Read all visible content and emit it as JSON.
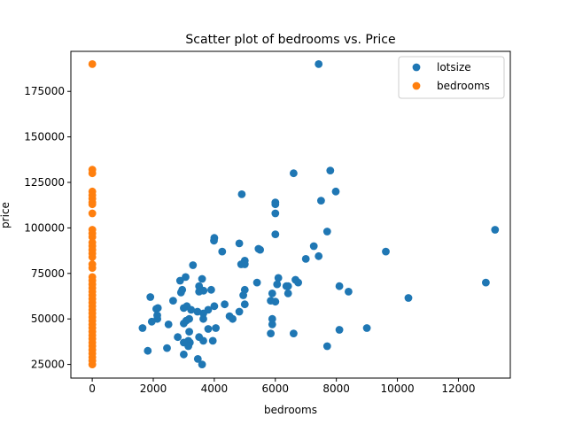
{
  "chart_data": {
    "type": "scatter",
    "title": "Scatter plot of bedrooms vs. Price",
    "xlabel": "bedrooms",
    "ylabel": "price",
    "xlim": [
      -700,
      13700
    ],
    "ylim": [
      17500,
      197000
    ],
    "xticks": [
      0,
      2000,
      4000,
      6000,
      8000,
      10000,
      12000
    ],
    "xtick_labels": [
      "0",
      "2000",
      "4000",
      "6000",
      "8000",
      "10000",
      "12000"
    ],
    "yticks": [
      25000,
      50000,
      75000,
      100000,
      125000,
      150000,
      175000
    ],
    "ytick_labels": [
      "25000",
      "50000",
      "75000",
      "100000",
      "125000",
      "150000",
      "175000"
    ],
    "grid": false,
    "legend_position": "top-right",
    "series": [
      {
        "name": "lotsize",
        "color": "#1f77b4",
        "points": [
          [
            7420,
            190000
          ],
          [
            13200,
            99000
          ],
          [
            12900,
            70000
          ],
          [
            10360,
            61500
          ],
          [
            9620,
            87000
          ],
          [
            9000,
            45000
          ],
          [
            8400,
            65000
          ],
          [
            8100,
            68000
          ],
          [
            8100,
            44000
          ],
          [
            7980,
            120000
          ],
          [
            7800,
            131500
          ],
          [
            7700,
            98000
          ],
          [
            7700,
            35000
          ],
          [
            7500,
            115000
          ],
          [
            7420,
            84500
          ],
          [
            7260,
            90000
          ],
          [
            7000,
            83000
          ],
          [
            6750,
            70000
          ],
          [
            6660,
            71500
          ],
          [
            6600,
            130000
          ],
          [
            6600,
            42000
          ],
          [
            6420,
            64000
          ],
          [
            6420,
            68000
          ],
          [
            6360,
            68000
          ],
          [
            6100,
            72500
          ],
          [
            6060,
            69000
          ],
          [
            6000,
            114000
          ],
          [
            6000,
            113000
          ],
          [
            6000,
            108000
          ],
          [
            6000,
            96500
          ],
          [
            6000,
            59500
          ],
          [
            5900,
            50000
          ],
          [
            5900,
            47000
          ],
          [
            5900,
            64000
          ],
          [
            5850,
            60000
          ],
          [
            5850,
            42000
          ],
          [
            5500,
            88000
          ],
          [
            5450,
            88500
          ],
          [
            5400,
            70000
          ],
          [
            5000,
            82000
          ],
          [
            5000,
            80000
          ],
          [
            5000,
            66000
          ],
          [
            5000,
            58000
          ],
          [
            4950,
            63000
          ],
          [
            4900,
            118500
          ],
          [
            4880,
            80000
          ],
          [
            4820,
            91500
          ],
          [
            4820,
            54000
          ],
          [
            4600,
            50000
          ],
          [
            4500,
            51500
          ],
          [
            4340,
            58000
          ],
          [
            4260,
            87000
          ],
          [
            4000,
            94500
          ],
          [
            3990,
            93000
          ],
          [
            4000,
            57000
          ],
          [
            4050,
            45000
          ],
          [
            3950,
            38000
          ],
          [
            3900,
            66000
          ],
          [
            3800,
            55000
          ],
          [
            3800,
            44500
          ],
          [
            3650,
            65500
          ],
          [
            3640,
            53000
          ],
          [
            3640,
            50000
          ],
          [
            3640,
            38000
          ],
          [
            3600,
            72000
          ],
          [
            3500,
            68000
          ],
          [
            3500,
            65000
          ],
          [
            3500,
            40000
          ],
          [
            3450,
            54000
          ],
          [
            3460,
            28000
          ],
          [
            3600,
            25000
          ],
          [
            3300,
            79500
          ],
          [
            3240,
            55000
          ],
          [
            3200,
            37000
          ],
          [
            3180,
            50000
          ],
          [
            3180,
            43000
          ],
          [
            3150,
            38000
          ],
          [
            3150,
            35000
          ],
          [
            3100,
            57000
          ],
          [
            3080,
            49000
          ],
          [
            3060,
            73000
          ],
          [
            3000,
            56000
          ],
          [
            3000,
            47500
          ],
          [
            3000,
            37000
          ],
          [
            3000,
            30500
          ],
          [
            2950,
            66000
          ],
          [
            2910,
            64500
          ],
          [
            2880,
            71000
          ],
          [
            2800,
            40000
          ],
          [
            2650,
            60000
          ],
          [
            2500,
            47000
          ],
          [
            2450,
            34000
          ],
          [
            2150,
            56000
          ],
          [
            2135,
            50000
          ],
          [
            2100,
            55500
          ],
          [
            2130,
            52000
          ],
          [
            1950,
            48500
          ],
          [
            1905,
            62000
          ],
          [
            1820,
            32500
          ],
          [
            1650,
            45000
          ]
        ]
      },
      {
        "name": "bedrooms",
        "color": "#ff7f0e",
        "points": [
          [
            3,
            190000
          ],
          [
            2,
            132000
          ],
          [
            2,
            130000
          ],
          [
            3,
            120000
          ],
          [
            3,
            118000
          ],
          [
            2,
            116000
          ],
          [
            3,
            114000
          ],
          [
            4,
            113000
          ],
          [
            2,
            108000
          ],
          [
            3,
            99000
          ],
          [
            3,
            97000
          ],
          [
            2,
            95000
          ],
          [
            3,
            92000
          ],
          [
            4,
            90000
          ],
          [
            2,
            88000
          ],
          [
            3,
            86000
          ],
          [
            3,
            84000
          ],
          [
            3,
            80000
          ],
          [
            3,
            78000
          ],
          [
            2,
            73000
          ],
          [
            3,
            71000
          ],
          [
            3,
            69000
          ],
          [
            2,
            67000
          ],
          [
            3,
            65000
          ],
          [
            3,
            63000
          ],
          [
            2,
            61000
          ],
          [
            3,
            59000
          ],
          [
            4,
            57000
          ],
          [
            2,
            55000
          ],
          [
            3,
            53000
          ],
          [
            3,
            51000
          ],
          [
            2,
            49000
          ],
          [
            3,
            47000
          ],
          [
            3,
            45000
          ],
          [
            2,
            43000
          ],
          [
            3,
            41000
          ],
          [
            2,
            39000
          ],
          [
            3,
            37000
          ],
          [
            2,
            35000
          ],
          [
            3,
            33000
          ],
          [
            2,
            31000
          ],
          [
            3,
            29000
          ],
          [
            2,
            27000
          ],
          [
            3,
            25000
          ]
        ]
      }
    ]
  }
}
